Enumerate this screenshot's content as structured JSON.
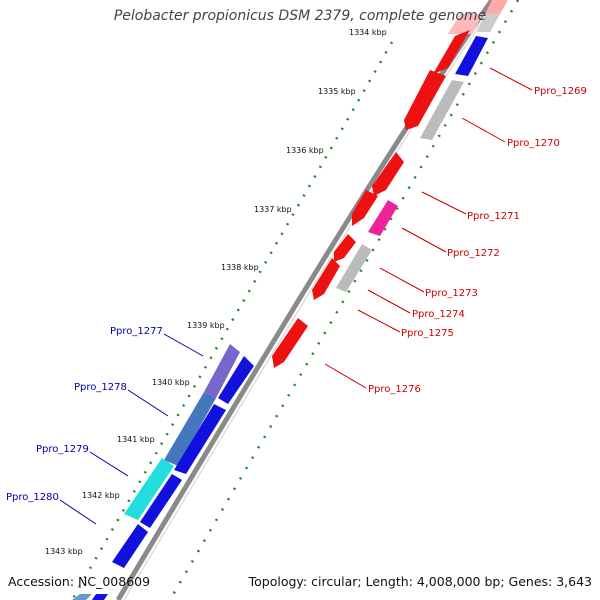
{
  "title": "Pelobacter propionicus DSM 2379, complete genome",
  "footer": {
    "accession": "Accession: NC_008609",
    "summary": "Topology: circular; Length: 4,008,000 bp; Genes: 3,643"
  },
  "colors": {
    "backbone": "#808080",
    "forward_red": "#ee1111",
    "reverse_blue": "#1111dd",
    "gray": "#bbbbbb",
    "magenta": "#ee2299",
    "label_red": "#cc0000",
    "label_blue": "#0000aa",
    "tick_green": "#228822"
  },
  "ticks": [
    {
      "label": "1334 kbp"
    },
    {
      "label": "1335 kbp"
    },
    {
      "label": "1336 kbp"
    },
    {
      "label": "1337 kbp"
    },
    {
      "label": "1338 kbp"
    },
    {
      "label": "1339 kbp"
    },
    {
      "label": "1340 kbp"
    },
    {
      "label": "1341 kbp"
    },
    {
      "label": "1342 kbp"
    },
    {
      "label": "1343 kbp"
    }
  ],
  "gene_labels_right": [
    {
      "label": "Ppro_1269"
    },
    {
      "label": "Ppro_1270"
    },
    {
      "label": "Ppro_1271"
    },
    {
      "label": "Ppro_1272"
    },
    {
      "label": "Ppro_1273"
    },
    {
      "label": "Ppro_1274"
    },
    {
      "label": "Ppro_1275"
    },
    {
      "label": "Ppro_1276"
    }
  ],
  "gene_labels_left": [
    {
      "label": "Ppro_1277"
    },
    {
      "label": "Ppro_1278"
    },
    {
      "label": "Ppro_1279"
    },
    {
      "label": "Ppro_1280"
    }
  ]
}
